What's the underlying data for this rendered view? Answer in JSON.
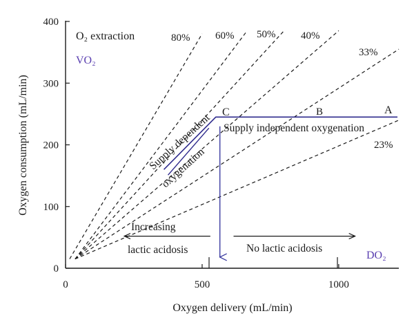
{
  "chart_data": {
    "type": "line",
    "xlabel": "Oxygen delivery (mL/min)",
    "ylabel": "Oxygen consumption (mL/min)",
    "xlim": [
      0,
      1220
    ],
    "ylim": [
      0,
      400
    ],
    "x_ticks": [
      0,
      500,
      1000
    ],
    "y_ticks": [
      0,
      100,
      200,
      300,
      400
    ],
    "grid": false,
    "origin_point": [
      40,
      15
    ],
    "extraction_lines": [
      {
        "label": "80%",
        "x_end": 500
      },
      {
        "label": "60%",
        "x_end": 665
      },
      {
        "label": "50%",
        "x_end": 800
      },
      {
        "label": "40%",
        "x_end": 1000
      },
      {
        "label": "33%",
        "x_end": 1220
      },
      {
        "label": "23%",
        "x_end": 1220
      }
    ],
    "extraction_series": [
      {
        "points": [
          [
            15,
            15
          ],
          [
            500,
            380
          ]
        ]
      },
      {
        "points": [
          [
            35,
            15
          ],
          [
            665,
            385
          ]
        ]
      },
      {
        "points": [
          [
            35,
            15
          ],
          [
            800,
            385
          ]
        ]
      },
      {
        "points": [
          [
            35,
            15
          ],
          [
            1000,
            385
          ]
        ]
      },
      {
        "points": [
          [
            35,
            15
          ],
          [
            1220,
            355
          ]
        ]
      },
      {
        "points": [
          [
            35,
            15
          ],
          [
            1220,
            240
          ]
        ]
      }
    ],
    "oxygenation_curve": {
      "points": [
        [
          360,
          160
        ],
        [
          550,
          245
        ],
        [
          1215,
          245
        ]
      ]
    },
    "points": [
      {
        "label": "C",
        "x": 550,
        "y": 245
      },
      {
        "label": "B",
        "x": 935,
        "y": 245
      },
      {
        "label": "A",
        "x": 1190,
        "y": 245
      }
    ],
    "critical_drop": {
      "x": 565,
      "y_start": 230,
      "y_end": 18
    },
    "arrows": [
      {
        "label": "Increasing lactic acidosis",
        "from_x": 530,
        "to_x": 215,
        "y": 52
      },
      {
        "label": "No lactic acidosis",
        "from_x": 615,
        "to_x": 1060,
        "y": 52
      }
    ],
    "annotations": {
      "o2_extraction": "O₂ extraction",
      "vo2": "VO₂",
      "do2": "DO₂",
      "supply_dependent_1": "Supply dependent",
      "supply_dependent_2": "oxygenation",
      "supply_independent": "Supply independent oxygenation",
      "increasing": "Increasing",
      "lactic_acidosis": "lactic acidosis",
      "no_lactic_acidosis": "No lactic acidosis"
    },
    "colors": {
      "curve": "#2e2a8c",
      "drop_arrow": "#3a3aa0",
      "label_accent": "#5a3fb0",
      "ink": "#1a1a1a"
    }
  }
}
